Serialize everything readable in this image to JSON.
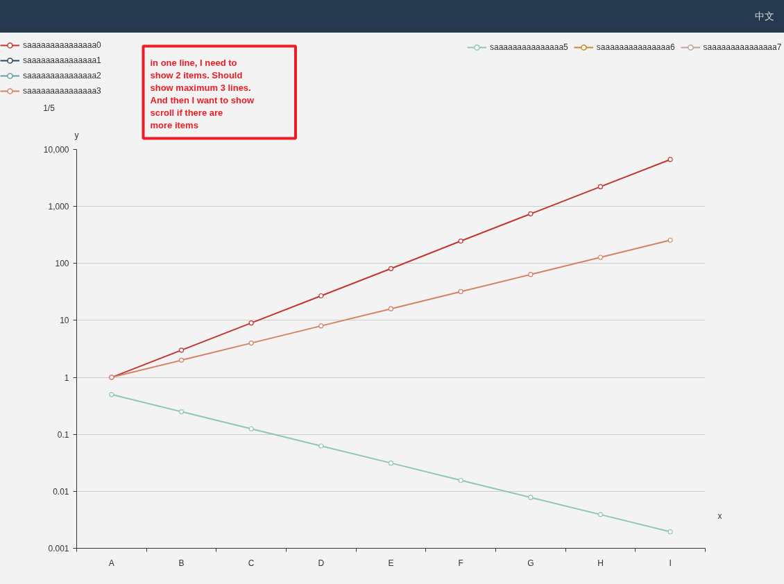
{
  "chart_data": {
    "type": "line",
    "categories": [
      "A",
      "B",
      "C",
      "D",
      "E",
      "F",
      "G",
      "H",
      "I"
    ],
    "series": [
      {
        "name": "saaaaaaaaaaaaaaa0",
        "color": "#c23531",
        "values": [
          1,
          3,
          9,
          27,
          81,
          247,
          741,
          2223,
          6669
        ]
      },
      {
        "name": "saaaaaaaaaaaaaaa1",
        "color": "#2f4554",
        "values": [
          null,
          null,
          null,
          null,
          null,
          null,
          null,
          null,
          null
        ]
      },
      {
        "name": "saaaaaaaaaaaaaaa2",
        "color": "#61a0a8",
        "values": [
          null,
          null,
          null,
          null,
          null,
          null,
          null,
          null,
          null
        ]
      },
      {
        "name": "saaaaaaaaaaaaaaa3",
        "color": "#d48265",
        "values": [
          1,
          2,
          4,
          8,
          16,
          32,
          64,
          128,
          256
        ]
      },
      {
        "name": "saaaaaaaaaaaaaaa5",
        "color": "#91c7ae",
        "values": [
          0.5,
          0.25,
          0.125,
          0.0625,
          0.0313,
          0.0156,
          0.00781,
          0.00391,
          0.00195
        ]
      },
      {
        "name": "saaaaaaaaaaaaaaa6",
        "color": "#ca8622",
        "values": [
          null,
          null,
          null,
          null,
          null,
          null,
          null,
          null,
          null
        ]
      },
      {
        "name": "saaaaaaaaaaaaaaa7",
        "color": "#bda29a",
        "values": [
          null,
          null,
          null,
          null,
          null,
          null,
          null,
          null,
          null
        ]
      }
    ],
    "xlabel": "x",
    "ylabel": "y",
    "log": "y",
    "ylim": [
      0.001,
      10000
    ],
    "yticks": [
      0.001,
      0.01,
      0.1,
      1,
      10,
      100,
      {
        "value": 1000,
        "label": "1,000"
      },
      {
        "value": 10000,
        "label": "10,000"
      }
    ],
    "grid": "y",
    "legend": "top",
    "marker": "circle",
    "annotations": [
      "in one line, I need to show 2 items. Should show maximum 3 lines. And then I want to show scroll if there are more items",
      "1/5",
      "中文"
    ]
  }
}
